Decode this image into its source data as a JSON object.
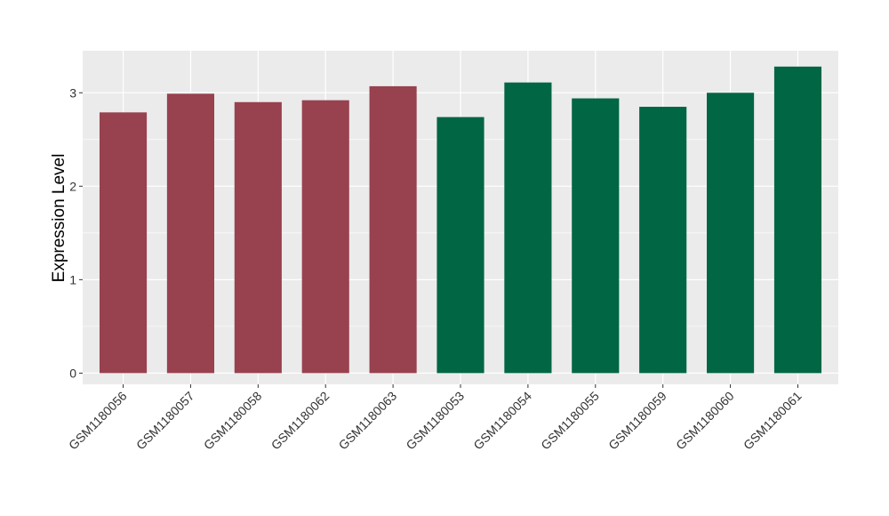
{
  "chart_data": {
    "type": "bar",
    "title": "",
    "xlabel": "",
    "ylabel": "Expression Level",
    "ylim": [
      -0.12,
      3.45
    ],
    "yticks": [
      0,
      1,
      2,
      3
    ],
    "grid": true,
    "legend": "none",
    "background_color": "#ebebeb",
    "grid_color": "#ffffff",
    "categories": [
      "GSM1180056",
      "GSM1180057",
      "GSM1180058",
      "GSM1180062",
      "GSM1180063",
      "GSM1180053",
      "GSM1180054",
      "GSM1180055",
      "GSM1180059",
      "GSM1180060",
      "GSM1180061"
    ],
    "values": [
      2.79,
      2.99,
      2.9,
      2.92,
      3.07,
      2.74,
      3.11,
      2.94,
      2.85,
      3.0,
      3.28
    ],
    "bar_colors": [
      "#98414f",
      "#98414f",
      "#98414f",
      "#98414f",
      "#98414f",
      "#006643",
      "#006643",
      "#006643",
      "#006643",
      "#006643",
      "#006643"
    ]
  }
}
